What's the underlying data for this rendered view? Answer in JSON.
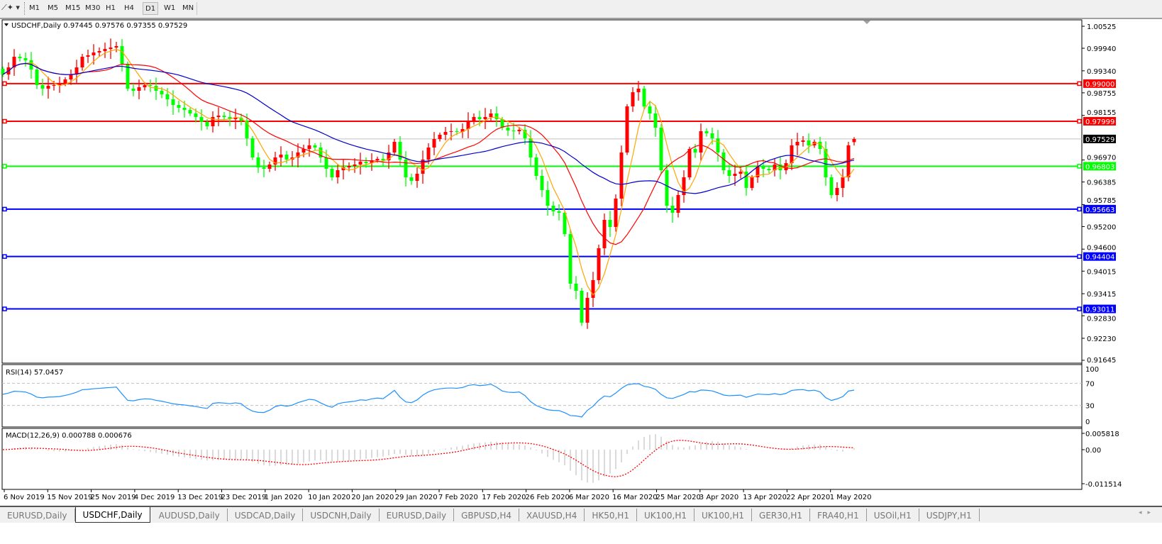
{
  "toolbar": {
    "tool_icon": "line-tools-icon",
    "timeframes": [
      "M1",
      "M5",
      "M15",
      "M30",
      "H1",
      "H4",
      "D1",
      "W1",
      "MN"
    ],
    "active_timeframe": "D1"
  },
  "chart_data": {
    "type": "candlestick",
    "header": "USDCHF,Daily  0.97445 0.97576 0.97355 0.97529",
    "last_bar": {
      "open": 0.97445,
      "high": 0.97576,
      "low": 0.97355,
      "close": 0.97529
    },
    "current_price": "0.97529",
    "bull_color": "#ff0000",
    "bear_color": "#00ff00",
    "ma_colors": [
      "#ffa500",
      "#ff0000",
      "#0000cd"
    ],
    "ylim": [
      0.91645,
      1.00525
    ],
    "y_ticks": [
      "1.00525",
      "0.99940",
      "0.99340",
      "0.98755",
      "0.98155",
      "0.96970",
      "0.96385",
      "0.95785",
      "0.95200",
      "0.94600",
      "0.94015",
      "0.93415",
      "0.92830",
      "0.92230",
      "0.91645"
    ],
    "x_ticks": [
      "6 Nov 2019",
      "15 Nov 2019",
      "25 Nov 2019",
      "4 Dec 2019",
      "13 Dec 2019",
      "23 Dec 2019",
      "1 Jan 2020",
      "10 Jan 2020",
      "20 Jan 2020",
      "29 Jan 2020",
      "7 Feb 2020",
      "17 Feb 2020",
      "26 Feb 2020",
      "6 Mar 2020",
      "16 Mar 2020",
      "25 Mar 2020",
      "3 Apr 2020",
      "13 Apr 2020",
      "22 Apr 2020",
      "1 May 2020"
    ],
    "horizontal_lines": [
      {
        "price": "0.99000",
        "color": "#ff0000"
      },
      {
        "price": "0.97999",
        "color": "#ff0000"
      },
      {
        "price": "0.96803",
        "color": "#00ff00"
      },
      {
        "price": "0.95663",
        "color": "#0000ff"
      },
      {
        "price": "0.94404",
        "color": "#0000ff"
      },
      {
        "price": "0.93011",
        "color": "#0000ff"
      }
    ],
    "closes": [
      0.99243,
      0.99431,
      0.99714,
      0.99676,
      0.9962,
      0.99375,
      0.9896,
      0.98866,
      0.98941,
      0.9896,
      0.98998,
      0.99111,
      0.99243,
      0.99431,
      0.99714,
      0.99752,
      0.99827,
      0.99865,
      0.99921,
      0.99959,
      0.99997,
      0.99525,
      0.98866,
      0.98809,
      0.98903,
      0.9896,
      0.98941,
      0.98809,
      0.98715,
      0.98583,
      0.98432,
      0.98357,
      0.983,
      0.98206,
      0.98112,
      0.9798,
      0.97867,
      0.98112,
      0.98149,
      0.98112,
      0.98055,
      0.98093,
      0.98017,
      0.97546,
      0.97037,
      0.96773,
      0.96736,
      0.96849,
      0.97037,
      0.97113,
      0.96981,
      0.97037,
      0.97169,
      0.97263,
      0.97358,
      0.97301,
      0.97037,
      0.96736,
      0.96509,
      0.96698,
      0.96773,
      0.96811,
      0.96849,
      0.96924,
      0.96886,
      0.96962,
      0.97,
      0.96962,
      0.97169,
      0.97452,
      0.96981,
      0.96509,
      0.96415,
      0.96604,
      0.96981,
      0.97301,
      0.97527,
      0.9764,
      0.97716,
      0.97735,
      0.97716,
      0.97791,
      0.98017,
      0.98112,
      0.98055,
      0.98112,
      0.98206,
      0.98055,
      0.97829,
      0.97754,
      0.97735,
      0.97772,
      0.97546,
      0.97037,
      0.96547,
      0.9617,
      0.95755,
      0.95605,
      0.95567,
      0.95001,
      0.93682,
      0.93493,
      0.92645,
      0.93305,
      0.93776,
      0.94624,
      0.95378,
      0.9519,
      0.95944,
      0.97169,
      0.98394,
      0.98771,
      0.98866,
      0.98394,
      0.98206,
      0.97829,
      0.96698,
      0.95755,
      0.95567,
      0.96038,
      0.96509,
      0.97263,
      0.97169,
      0.97735,
      0.97678,
      0.97546,
      0.97169,
      0.96698,
      0.96547,
      0.96604,
      0.9666,
      0.96227,
      0.96509,
      0.96793,
      0.96736,
      0.96698,
      0.96849,
      0.96698,
      0.96886,
      0.97358,
      0.97452,
      0.9749,
      0.97358,
      0.97452,
      0.97263,
      0.96509,
      0.96038,
      0.96227,
      0.96509,
      0.97358,
      0.97529
    ],
    "rsi": {
      "label": "RSI(14) 57.0457",
      "levels": [
        70,
        30
      ],
      "ticks": [
        "100",
        "70",
        "30",
        "0"
      ],
      "color": "#1e90ff"
    },
    "macd": {
      "label": "MACD(12,26,9) 0.000788 0.000676",
      "ticks": [
        "0.005818",
        "0.00",
        "-0.011514"
      ],
      "ylim": [
        -0.011514,
        0.005818
      ],
      "histogram_color": "#c0c0c0",
      "signal_color": "#ff0000"
    }
  },
  "tabs": [
    "EURUSD,Daily",
    "USDCHF,Daily",
    "AUDUSD,Daily",
    "USDCAD,Daily",
    "USDCNH,Daily",
    "EURUSD,Daily",
    "GBPUSD,H4",
    "XAUUSD,H4",
    "HK50,H1",
    "UK100,H1",
    "UK100,H1",
    "GER30,H1",
    "FRA40,H1",
    "USOil,H1",
    "USDJPY,H1"
  ],
  "active_tab": "USDCHF,Daily"
}
